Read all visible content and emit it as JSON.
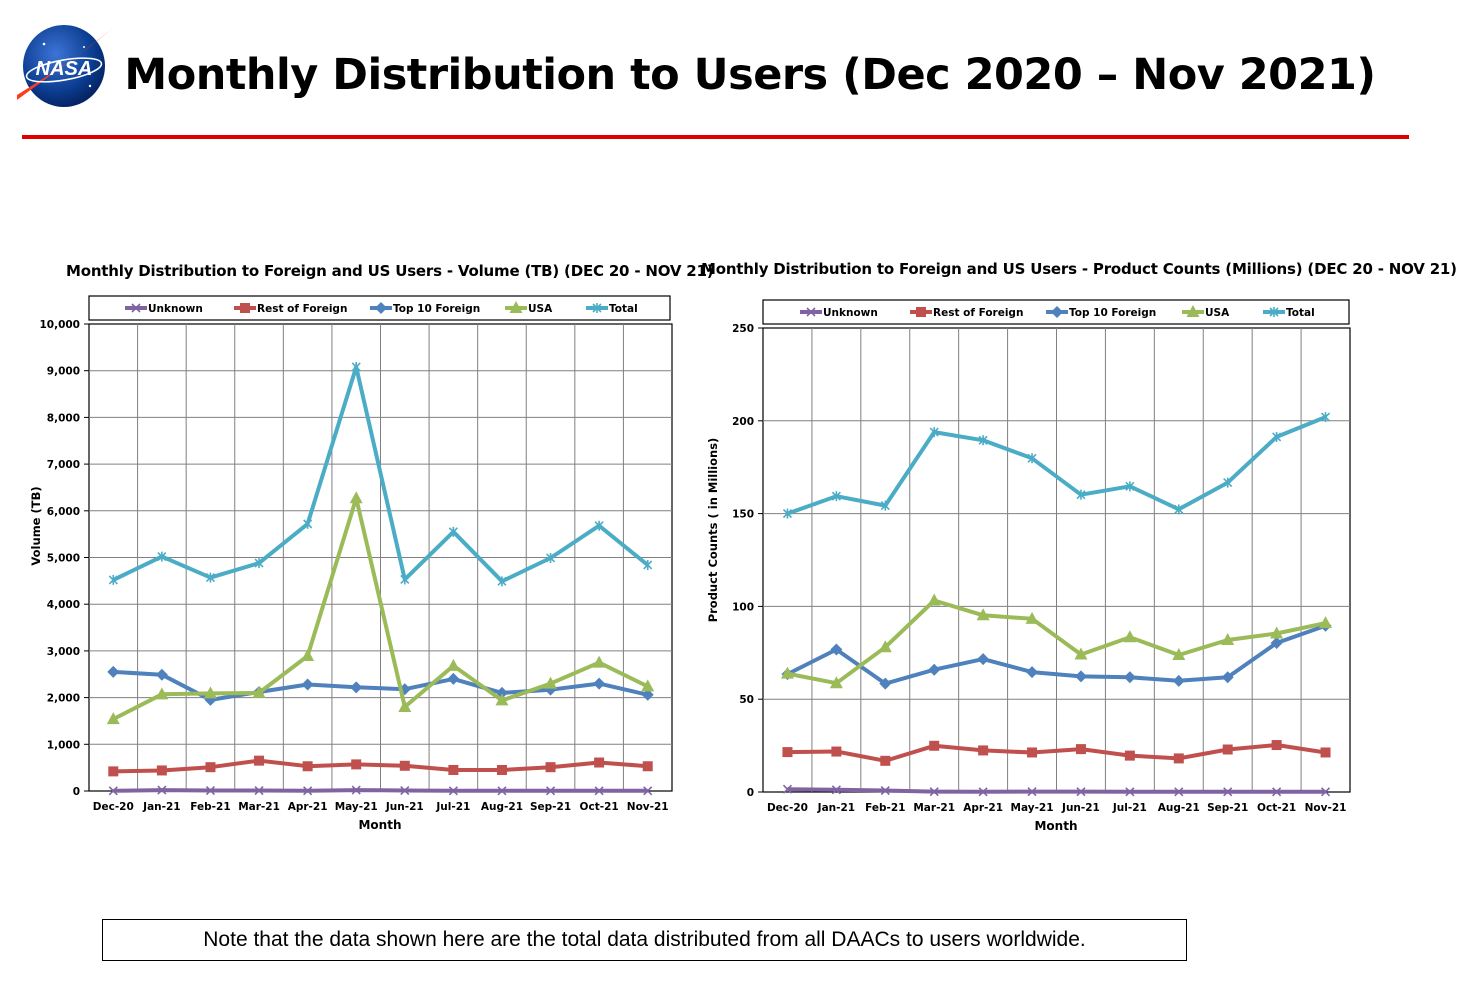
{
  "page": {
    "title": "Monthly Distribution to Users (Dec 2020 – Nov 2021)",
    "logo_text": "NASA",
    "note": "Note that the data shown here are the total data distributed from all DAACs to users worldwide."
  },
  "colors": {
    "rule": "#e00000",
    "Unknown": "#8064a2",
    "Rest of Foreign": "#c0504d",
    "Top 10 Foreign": "#4f81bd",
    "USA": "#9bbb59",
    "Total": "#4bacc6"
  },
  "chart_data": [
    {
      "type": "line",
      "title": "Monthly Distribution to Foreign and US Users - Volume  (TB) (DEC 20 - NOV 21)",
      "xlabel": "Month",
      "ylabel": "Volume (TB)",
      "ylim": [
        0,
        10000
      ],
      "yticks": [
        0,
        1000,
        2000,
        3000,
        4000,
        5000,
        6000,
        7000,
        8000,
        9000,
        10000
      ],
      "ytick_labels": [
        "0",
        "1,000",
        "2,000",
        "3,000",
        "4,000",
        "5,000",
        "6,000",
        "7,000",
        "8,000",
        "9,000",
        "10,000"
      ],
      "grid": true,
      "legend": "top",
      "categories": [
        "Dec-20",
        "Jan-21",
        "Feb-21",
        "Mar-21",
        "Apr-21",
        "May-21",
        "Jun-21",
        "Jul-21",
        "Aug-21",
        "Sep-21",
        "Oct-21",
        "Nov-21"
      ],
      "series": [
        {
          "name": "Unknown",
          "marker": "x",
          "values": [
            5,
            20,
            10,
            10,
            5,
            20,
            10,
            5,
            5,
            5,
            5,
            5
          ]
        },
        {
          "name": "Rest of Foreign",
          "marker": "square",
          "values": [
            420,
            440,
            510,
            650,
            530,
            570,
            540,
            450,
            450,
            510,
            610,
            530
          ]
        },
        {
          "name": "Top 10 Foreign",
          "marker": "diamond",
          "values": [
            2550,
            2490,
            1950,
            2120,
            2280,
            2220,
            2180,
            2400,
            2100,
            2170,
            2300,
            2060
          ]
        },
        {
          "name": "USA",
          "marker": "triangle",
          "values": [
            1540,
            2070,
            2090,
            2100,
            2890,
            6270,
            1800,
            2680,
            1940,
            2300,
            2750,
            2240
          ]
        },
        {
          "name": "Total",
          "marker": "star",
          "values": [
            4520,
            5020,
            4570,
            4880,
            5720,
            9080,
            4530,
            5550,
            4490,
            4990,
            5680,
            4840
          ]
        }
      ]
    },
    {
      "type": "line",
      "title": "Monthly Distribution to Foreign and US Users - Product Counts (Millions) (DEC 20 - NOV 21)",
      "xlabel": "Month",
      "ylabel": "Product Counts ( in Millions)",
      "ylim": [
        0,
        250
      ],
      "yticks": [
        0,
        50,
        100,
        150,
        200,
        250
      ],
      "ytick_labels": [
        "0",
        "50",
        "100",
        "150",
        "200",
        "250"
      ],
      "grid": true,
      "legend": "top",
      "categories": [
        "Dec-20",
        "Jan-21",
        "Feb-21",
        "Mar-21",
        "Apr-21",
        "May-21",
        "Jun-21",
        "Jul-21",
        "Aug-21",
        "Sep-21",
        "Oct-21",
        "Nov-21"
      ],
      "series": [
        {
          "name": "Unknown",
          "marker": "x",
          "values": [
            1.5,
            1.2,
            0.8,
            0.2,
            0.1,
            0.2,
            0.2,
            0.1,
            0.1,
            0.1,
            0.1,
            0.1
          ]
        },
        {
          "name": "Rest of Foreign",
          "marker": "square",
          "values": [
            21.5,
            21.8,
            16.8,
            24.9,
            22.4,
            21.3,
            23.1,
            19.6,
            18.1,
            22.9,
            25.3,
            21.3
          ]
        },
        {
          "name": "Top 10 Foreign",
          "marker": "diamond",
          "values": [
            63.5,
            76.8,
            58.4,
            65.9,
            71.6,
            64.6,
            62.3,
            61.8,
            59.9,
            61.8,
            80.3,
            89.6
          ]
        },
        {
          "name": "USA",
          "marker": "triangle",
          "values": [
            63.8,
            58.6,
            78.0,
            103.2,
            95.2,
            93.3,
            74.1,
            83.4,
            73.8,
            81.9,
            85.4,
            91.0
          ]
        },
        {
          "name": "Total",
          "marker": "star",
          "values": [
            150.0,
            159.4,
            154.3,
            193.9,
            189.5,
            179.8,
            160.2,
            164.7,
            152.3,
            166.7,
            191.3,
            202.0
          ]
        }
      ]
    }
  ]
}
